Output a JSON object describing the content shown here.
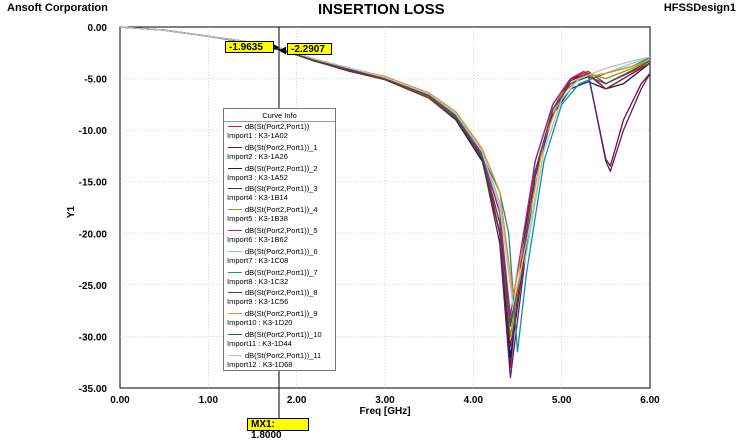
{
  "header": {
    "left": "Ansoft Corporation",
    "title": "INSERTION LOSS",
    "right": "HFSSDesign1"
  },
  "legend": {
    "title": "Curve Info",
    "items": [
      {
        "name": "dB(St(Port2,Port1))",
        "import": "Import1 : K3-1A02",
        "color": "#d81b1b"
      },
      {
        "name": "dB(St(Port2,Port1))_1",
        "import": "Import2 : K3-1A26",
        "color": "#7a0f2e"
      },
      {
        "name": "dB(St(Port2,Port1))_2",
        "import": "Import3 : K3-1A52",
        "color": "#0a1a7a"
      },
      {
        "name": "dB(St(Port2,Port1))_3",
        "import": "Import4 : K3-1B14",
        "color": "#5a1a7a"
      },
      {
        "name": "dB(St(Port2,Port1))_4",
        "import": "Import5 : K3-1B38",
        "color": "#8a9a1a"
      },
      {
        "name": "dB(St(Port2,Port1))_5",
        "import": "Import6 : K3-1B62",
        "color": "#b01aa0"
      },
      {
        "name": "dB(St(Port2,Port1))_6",
        "import": "Import7 : K3-1C08",
        "color": "#7ad0d0"
      },
      {
        "name": "dB(St(Port2,Port1))_7",
        "import": "Import8 : K3-1C32",
        "color": "#10909a"
      },
      {
        "name": "dB(St(Port2,Port1))_8",
        "import": "Import9 : K3-1C56",
        "color": "#8a2a10"
      },
      {
        "name": "dB(St(Port2,Port1))_9",
        "import": "Import10 : K3-1D20",
        "color": "#f08a10"
      },
      {
        "name": "dB(St(Port2,Port1))_10",
        "import": "Import11 : K3-1D44",
        "color": "#2a5a5a"
      },
      {
        "name": "dB(St(Port2,Port1))_11",
        "import": "Import12 : K3-1D68",
        "color": "#c0c0c0"
      }
    ]
  },
  "markers": {
    "x_label": "MX1: 1.8000",
    "y1_label": "-1.9635",
    "y2_label": "-2.2907"
  },
  "chart_data": {
    "type": "line",
    "title": "INSERTION LOSS",
    "xlabel": "Freq [GHz]",
    "ylabel": "Y1",
    "xlim": [
      0,
      6
    ],
    "ylim": [
      -35,
      0
    ],
    "x_ticks": [
      "0.00",
      "1.00",
      "2.00",
      "3.00",
      "4.00",
      "5.00",
      "6.00"
    ],
    "y_ticks": [
      "0.00",
      "-5.00",
      "-10.00",
      "-15.00",
      "-20.00",
      "-25.00",
      "-30.00",
      "-35.00"
    ],
    "grid": true,
    "legend_position": "middle-left",
    "marker": {
      "x": 1.8,
      "values": [
        -1.9635,
        -2.2907
      ]
    },
    "series": [
      {
        "name": "dB(St(Port2,Port1))",
        "points": [
          [
            0,
            0
          ],
          [
            0.5,
            -0.3
          ],
          [
            1.0,
            -0.9
          ],
          [
            1.5,
            -1.5
          ],
          [
            1.8,
            -2.1
          ],
          [
            2.2,
            -3.3
          ],
          [
            2.6,
            -4.2
          ],
          [
            3.0,
            -5.0
          ],
          [
            3.5,
            -6.8
          ],
          [
            3.8,
            -8.8
          ],
          [
            4.1,
            -12.5
          ],
          [
            4.3,
            -18
          ],
          [
            4.4,
            -29
          ],
          [
            4.5,
            -26
          ],
          [
            4.7,
            -14
          ],
          [
            4.9,
            -8
          ],
          [
            5.1,
            -5
          ],
          [
            5.3,
            -4.3
          ],
          [
            5.5,
            -5.5
          ],
          [
            5.8,
            -4.3
          ],
          [
            6.0,
            -3.5
          ]
        ]
      },
      {
        "name": "dB(St(Port2,Port1))_1",
        "points": [
          [
            0,
            0
          ],
          [
            0.5,
            -0.3
          ],
          [
            1.0,
            -0.9
          ],
          [
            1.5,
            -1.5
          ],
          [
            1.8,
            -2.0
          ],
          [
            2.2,
            -3.2
          ],
          [
            2.6,
            -4.1
          ],
          [
            3.0,
            -5.0
          ],
          [
            3.5,
            -6.6
          ],
          [
            3.8,
            -8.6
          ],
          [
            4.1,
            -12.3
          ],
          [
            4.3,
            -20
          ],
          [
            4.42,
            -33
          ],
          [
            4.55,
            -22
          ],
          [
            4.7,
            -13
          ],
          [
            4.9,
            -7.5
          ],
          [
            5.1,
            -5
          ],
          [
            5.3,
            -4.6
          ],
          [
            5.5,
            -12.8
          ],
          [
            5.55,
            -13.5
          ],
          [
            5.7,
            -9
          ],
          [
            5.9,
            -5.5
          ],
          [
            6.0,
            -4.5
          ]
        ]
      },
      {
        "name": "dB(St(Port2,Port1))_2",
        "points": [
          [
            0,
            0
          ],
          [
            0.5,
            -0.3
          ],
          [
            1.0,
            -0.9
          ],
          [
            1.5,
            -1.6
          ],
          [
            1.8,
            -2.2
          ],
          [
            2.2,
            -3.2
          ],
          [
            2.5,
            -3.9
          ],
          [
            2.8,
            -4.5
          ],
          [
            3.0,
            -4.8
          ],
          [
            3.2,
            -5.5
          ],
          [
            3.5,
            -6.9
          ],
          [
            3.8,
            -9
          ],
          [
            4.1,
            -13
          ],
          [
            4.3,
            -20
          ],
          [
            4.42,
            -32
          ],
          [
            4.55,
            -24
          ],
          [
            4.7,
            -14
          ],
          [
            4.9,
            -8.5
          ],
          [
            5.1,
            -6
          ],
          [
            5.3,
            -5.3
          ],
          [
            5.5,
            -6
          ],
          [
            5.7,
            -5.5
          ],
          [
            6.0,
            -3.5
          ]
        ]
      },
      {
        "name": "dB(St(Port2,Port1))_3",
        "points": [
          [
            0,
            0
          ],
          [
            0.5,
            -0.3
          ],
          [
            1.0,
            -0.9
          ],
          [
            1.5,
            -1.5
          ],
          [
            1.8,
            -2.1
          ],
          [
            2.2,
            -3.3
          ],
          [
            2.6,
            -4.3
          ],
          [
            3.0,
            -5.1
          ],
          [
            3.5,
            -6.9
          ],
          [
            3.8,
            -8.9
          ],
          [
            4.1,
            -12.8
          ],
          [
            4.3,
            -21
          ],
          [
            4.42,
            -34
          ],
          [
            4.55,
            -25
          ],
          [
            4.7,
            -14.5
          ],
          [
            4.9,
            -8.5
          ],
          [
            5.1,
            -5.2
          ],
          [
            5.3,
            -4.5
          ],
          [
            5.5,
            -13
          ],
          [
            5.55,
            -14
          ],
          [
            5.7,
            -10
          ],
          [
            5.9,
            -6
          ],
          [
            6.0,
            -4.5
          ]
        ]
      },
      {
        "name": "dB(St(Port2,Port1))_4",
        "points": [
          [
            0,
            0
          ],
          [
            0.5,
            -0.3
          ],
          [
            1.0,
            -0.9
          ],
          [
            1.5,
            -1.5
          ],
          [
            1.8,
            -2.1
          ],
          [
            2.2,
            -3.3
          ],
          [
            2.6,
            -4.2
          ],
          [
            3.0,
            -5.1
          ],
          [
            3.5,
            -6.8
          ],
          [
            3.8,
            -8.7
          ],
          [
            4.1,
            -12.5
          ],
          [
            4.3,
            -19
          ],
          [
            4.42,
            -30
          ],
          [
            4.55,
            -23
          ],
          [
            4.7,
            -14
          ],
          [
            4.9,
            -8
          ],
          [
            5.1,
            -5.5
          ],
          [
            5.3,
            -4.5
          ],
          [
            5.5,
            -5
          ],
          [
            5.8,
            -4
          ],
          [
            6.0,
            -3.2
          ]
        ]
      },
      {
        "name": "dB(St(Port2,Port1))_5",
        "points": [
          [
            0,
            0
          ],
          [
            0.5,
            -0.3
          ],
          [
            1.0,
            -0.9
          ],
          [
            1.5,
            -1.5
          ],
          [
            1.8,
            -2.0
          ],
          [
            2.2,
            -3.1
          ],
          [
            2.6,
            -4.0
          ],
          [
            3.0,
            -4.9
          ],
          [
            3.5,
            -6.6
          ],
          [
            3.8,
            -8.5
          ],
          [
            4.1,
            -12.2
          ],
          [
            4.3,
            -18
          ],
          [
            4.42,
            -28
          ],
          [
            4.55,
            -21
          ],
          [
            4.7,
            -13
          ],
          [
            4.9,
            -7.5
          ],
          [
            5.1,
            -5
          ],
          [
            5.25,
            -4.3
          ],
          [
            5.5,
            -6
          ],
          [
            5.8,
            -4.5
          ],
          [
            6.0,
            -3.5
          ]
        ]
      },
      {
        "name": "dB(St(Port2,Port1))_6",
        "points": [
          [
            0,
            0
          ],
          [
            0.5,
            -0.3
          ],
          [
            1.0,
            -0.9
          ],
          [
            1.5,
            -1.5
          ],
          [
            1.8,
            -2.0
          ],
          [
            2.2,
            -3.1
          ],
          [
            2.6,
            -4.0
          ],
          [
            3.0,
            -4.9
          ],
          [
            3.5,
            -6.5
          ],
          [
            3.8,
            -8.4
          ],
          [
            4.1,
            -12
          ],
          [
            4.3,
            -17
          ],
          [
            4.45,
            -27
          ],
          [
            4.6,
            -22
          ],
          [
            4.8,
            -12
          ],
          [
            5.0,
            -7
          ],
          [
            5.2,
            -5
          ],
          [
            5.5,
            -4.5
          ],
          [
            5.8,
            -3.5
          ],
          [
            6.0,
            -3
          ]
        ]
      },
      {
        "name": "dB(St(Port2,Port1))_7",
        "points": [
          [
            0,
            0
          ],
          [
            0.5,
            -0.3
          ],
          [
            1.0,
            -0.9
          ],
          [
            1.5,
            -1.5
          ],
          [
            1.8,
            -2.0
          ],
          [
            2.2,
            -3.2
          ],
          [
            2.6,
            -4.1
          ],
          [
            3.0,
            -5.0
          ],
          [
            3.5,
            -6.7
          ],
          [
            3.8,
            -8.6
          ],
          [
            4.1,
            -12.5
          ],
          [
            4.3,
            -16
          ],
          [
            4.4,
            -20
          ],
          [
            4.5,
            -31.5
          ],
          [
            4.6,
            -24
          ],
          [
            4.8,
            -13
          ],
          [
            5.0,
            -7.5
          ],
          [
            5.2,
            -5.5
          ],
          [
            5.5,
            -4.5
          ],
          [
            5.8,
            -3.8
          ],
          [
            6.0,
            -3
          ]
        ]
      },
      {
        "name": "dB(St(Port2,Port1))_8",
        "points": [
          [
            0,
            0
          ],
          [
            0.5,
            -0.3
          ],
          [
            1.0,
            -0.9
          ],
          [
            1.5,
            -1.5
          ],
          [
            1.8,
            -2.1
          ],
          [
            2.2,
            -3.3
          ],
          [
            2.6,
            -4.2
          ],
          [
            3.0,
            -5.1
          ],
          [
            3.5,
            -6.9
          ],
          [
            3.8,
            -8.9
          ],
          [
            4.1,
            -12.8
          ],
          [
            4.3,
            -20
          ],
          [
            4.42,
            -31
          ],
          [
            4.55,
            -24
          ],
          [
            4.7,
            -14
          ],
          [
            4.9,
            -8
          ],
          [
            5.1,
            -5.2
          ],
          [
            5.3,
            -4.5
          ],
          [
            5.5,
            -6
          ],
          [
            5.8,
            -4.5
          ],
          [
            6.0,
            -3.5
          ]
        ]
      },
      {
        "name": "dB(St(Port2,Port1))_9",
        "points": [
          [
            0,
            0
          ],
          [
            0.5,
            -0.3
          ],
          [
            1.0,
            -0.9
          ],
          [
            1.5,
            -1.5
          ],
          [
            1.8,
            -2.0
          ],
          [
            2.2,
            -3.1
          ],
          [
            2.6,
            -4.0
          ],
          [
            3.0,
            -4.8
          ],
          [
            3.5,
            -6.4
          ],
          [
            3.8,
            -8.2
          ],
          [
            4.1,
            -11.8
          ],
          [
            4.3,
            -16
          ],
          [
            4.45,
            -26
          ],
          [
            4.6,
            -20
          ],
          [
            4.8,
            -11
          ],
          [
            5.0,
            -6.5
          ],
          [
            5.2,
            -5
          ],
          [
            5.5,
            -4.5
          ],
          [
            5.8,
            -3.8
          ],
          [
            6.0,
            -3.2
          ]
        ]
      },
      {
        "name": "dB(St(Port2,Port1))_10",
        "points": [
          [
            0,
            0
          ],
          [
            0.5,
            -0.3
          ],
          [
            1.0,
            -0.9
          ],
          [
            1.5,
            -1.5
          ],
          [
            1.8,
            -2.1
          ],
          [
            2.2,
            -3.2
          ],
          [
            2.6,
            -4.1
          ],
          [
            3.0,
            -5.0
          ],
          [
            3.5,
            -6.7
          ],
          [
            3.8,
            -8.7
          ],
          [
            4.1,
            -12.6
          ],
          [
            4.3,
            -19
          ],
          [
            4.42,
            -29
          ],
          [
            4.55,
            -23
          ],
          [
            4.7,
            -14
          ],
          [
            4.9,
            -8
          ],
          [
            5.1,
            -5.5
          ],
          [
            5.3,
            -4.8
          ],
          [
            5.5,
            -5.5
          ],
          [
            5.8,
            -4.2
          ],
          [
            6.0,
            -3.3
          ]
        ]
      },
      {
        "name": "dB(St(Port2,Port1))_11",
        "points": [
          [
            0,
            0
          ],
          [
            0.5,
            -0.3
          ],
          [
            1.0,
            -0.9
          ],
          [
            1.5,
            -1.5
          ],
          [
            1.8,
            -2.0
          ],
          [
            2.2,
            -3.1
          ],
          [
            2.6,
            -4.0
          ],
          [
            3.0,
            -4.9
          ],
          [
            3.5,
            -6.5
          ],
          [
            3.8,
            -8.4
          ],
          [
            4.1,
            -12.1
          ],
          [
            4.3,
            -17.5
          ],
          [
            4.45,
            -27
          ],
          [
            4.6,
            -21
          ],
          [
            4.8,
            -12
          ],
          [
            5.0,
            -7
          ],
          [
            5.2,
            -5
          ],
          [
            5.5,
            -4
          ],
          [
            5.8,
            -3.3
          ],
          [
            6.0,
            -2.9
          ]
        ]
      }
    ]
  }
}
